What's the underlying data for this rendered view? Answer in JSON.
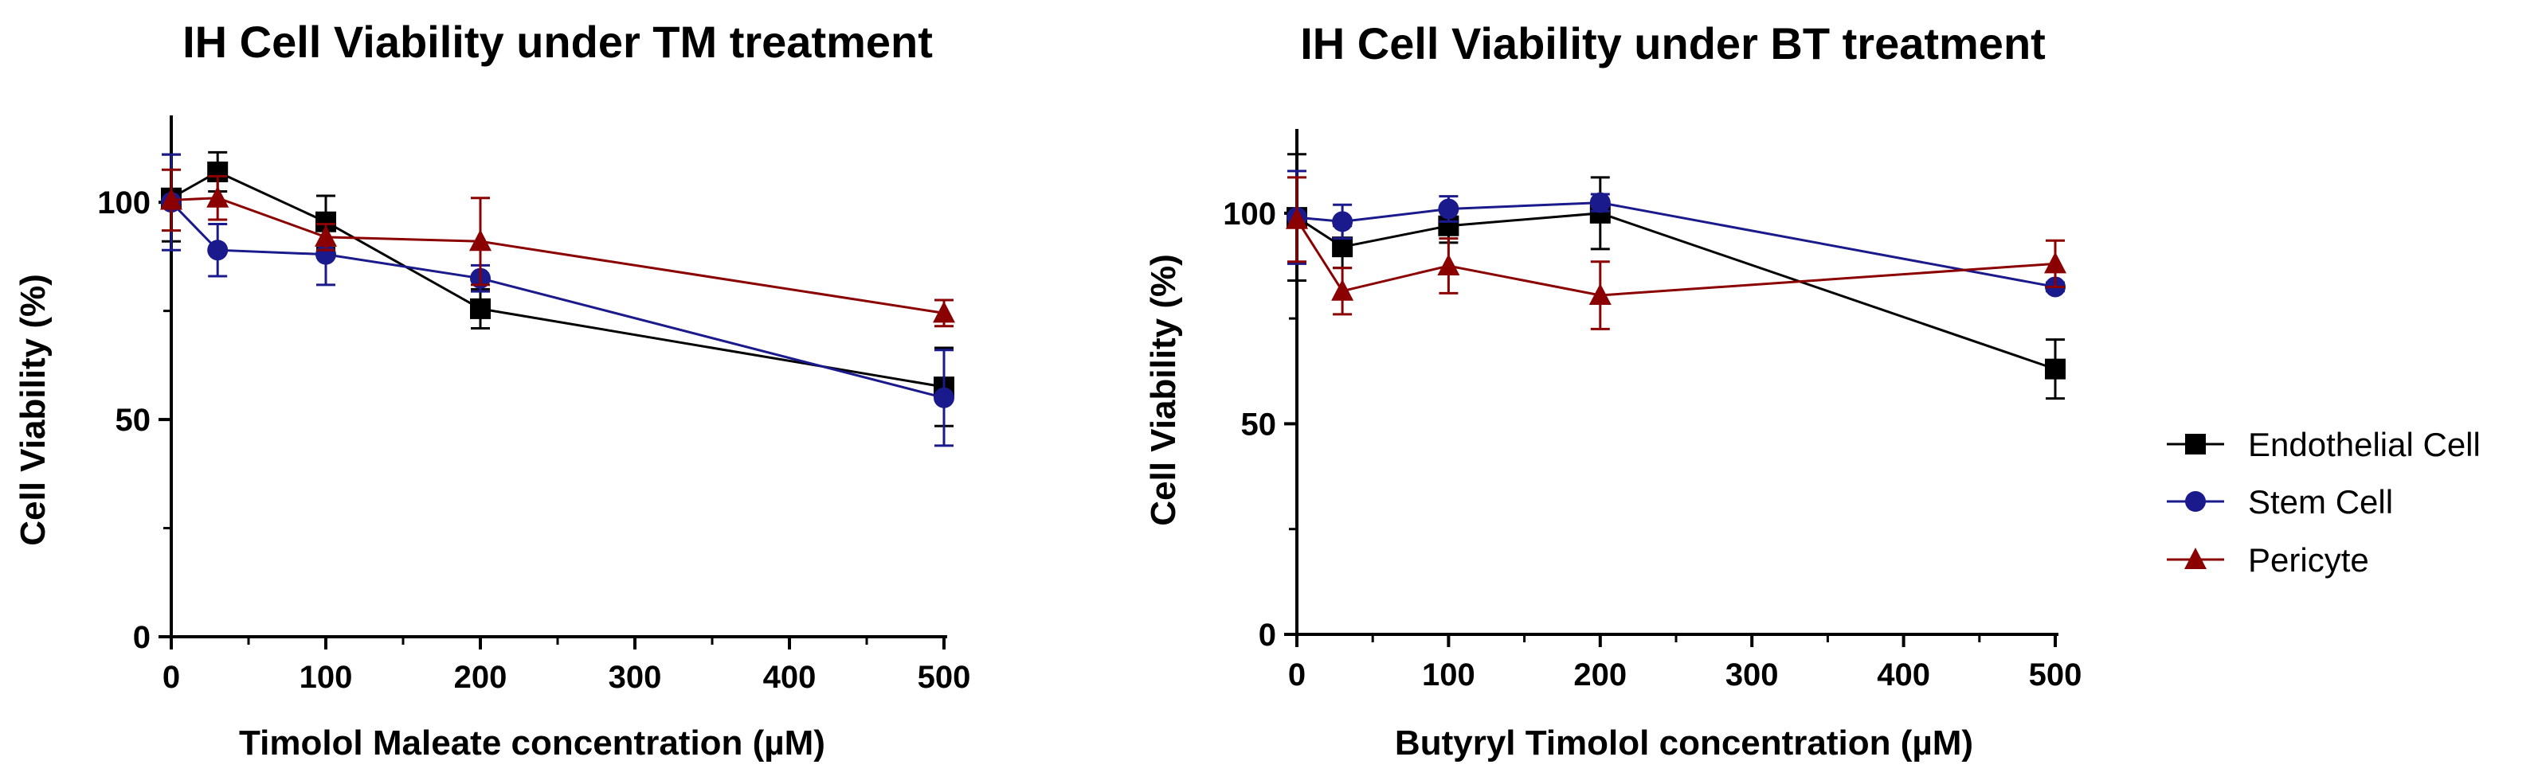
{
  "chart_data": [
    {
      "type": "line",
      "title": "IH Cell Viability under TM treatment",
      "xlabel": "Timolol Maleate concentration (µM)",
      "ylabel": "Cell Viability (%)",
      "xlim": [
        0,
        500
      ],
      "ylim": [
        0,
        120
      ],
      "xticks": [
        0,
        100,
        200,
        300,
        400,
        500
      ],
      "yticks": [
        0,
        50,
        100
      ],
      "grid": false,
      "series": [
        {
          "name": "Endothelial Cell",
          "color": "#000000",
          "marker": "square",
          "x": [
            0,
            30,
            100,
            200,
            500
          ],
          "y": [
            101,
            107,
            95.5,
            75.5,
            57.5
          ],
          "err": [
            10,
            4.5,
            6,
            4.5,
            9
          ]
        },
        {
          "name": "Stem Cell",
          "color": "#1a1a8c",
          "marker": "circle",
          "x": [
            0,
            30,
            100,
            200,
            500
          ],
          "y": [
            100,
            89,
            88,
            82.5,
            55
          ],
          "err": [
            11,
            6,
            7,
            3,
            11
          ]
        },
        {
          "name": "Pericyte",
          "color": "#8b0000",
          "marker": "triangle",
          "x": [
            0,
            30,
            100,
            200,
            500
          ],
          "y": [
            100.5,
            101,
            92,
            91,
            74.5
          ],
          "err": [
            7,
            5,
            3,
            10,
            3
          ]
        }
      ]
    },
    {
      "type": "line",
      "title": "IH Cell Viability under BT treatment",
      "xlabel": "Butyryl Timolol concentration (µM)",
      "ylabel": "Cell Viability (%)",
      "xlim": [
        0,
        500
      ],
      "ylim": [
        0,
        120
      ],
      "xticks": [
        0,
        100,
        200,
        300,
        400,
        500
      ],
      "yticks": [
        0,
        50,
        100
      ],
      "grid": false,
      "series": [
        {
          "name": "Endothelial Cell",
          "color": "#000000",
          "marker": "square",
          "x": [
            0,
            30,
            100,
            200,
            500
          ],
          "y": [
            99,
            92,
            97,
            100,
            63
          ],
          "err": [
            15,
            5,
            4,
            8.5,
            7
          ]
        },
        {
          "name": "Stem Cell",
          "color": "#1a1a8c",
          "marker": "circle",
          "x": [
            0,
            30,
            100,
            200,
            500
          ],
          "y": [
            99,
            98,
            101,
            102.5,
            82.5
          ],
          "err": [
            11,
            4,
            3,
            2,
            1
          ]
        },
        {
          "name": "Pericyte",
          "color": "#8b0000",
          "marker": "triangle",
          "x": [
            0,
            30,
            100,
            200,
            500
          ],
          "y": [
            98.5,
            81.5,
            87.5,
            80.5,
            88
          ],
          "err": [
            10,
            5.5,
            6.5,
            8,
            5.5
          ]
        }
      ]
    }
  ],
  "legend": {
    "placement": "right",
    "items": [
      {
        "label": "Endothelial Cell",
        "color": "#000000",
        "marker": "square"
      },
      {
        "label": "Stem Cell",
        "color": "#1a1a8c",
        "marker": "circle"
      },
      {
        "label": "Pericyte",
        "color": "#8b0000",
        "marker": "triangle"
      }
    ]
  }
}
